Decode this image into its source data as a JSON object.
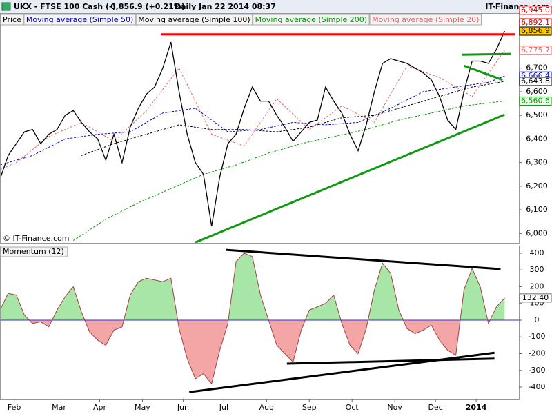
{
  "header": {
    "symbol": "UKX - FTSE 100 Cash (-)",
    "quote": "6,856.9 (+0.21%)",
    "period": "Daily  Jan 22 2014 08:37",
    "brand": "IT-Finance.com"
  },
  "chart_data": [
    {
      "type": "line",
      "watermark": "© IT-Finance.com",
      "xlim": [
        0,
        255
      ],
      "ylim": [
        5960,
        6930
      ],
      "yticks": [
        {
          "value": 6000,
          "label": "6,000"
        },
        {
          "value": 6100,
          "label": "6,100"
        },
        {
          "value": 6200,
          "label": "6,200"
        },
        {
          "value": 6300,
          "label": "6,300"
        },
        {
          "value": 6400,
          "label": "6,400"
        },
        {
          "value": 6500,
          "label": "6,500"
        },
        {
          "value": 6600,
          "label": "6,600"
        },
        {
          "value": 6700,
          "label": "6,700"
        }
      ],
      "xticks": [
        {
          "value": 7,
          "label": "Feb"
        },
        {
          "value": 29,
          "label": "Mar"
        },
        {
          "value": 49,
          "label": "Apr"
        },
        {
          "value": 70,
          "label": "May"
        },
        {
          "value": 90,
          "label": "Jun"
        },
        {
          "value": 110,
          "label": "Jul"
        },
        {
          "value": 131,
          "label": "Aug"
        },
        {
          "value": 152,
          "label": "Sep"
        },
        {
          "value": 173,
          "label": "Oct"
        },
        {
          "value": 194,
          "label": "Nov"
        },
        {
          "value": 214,
          "label": "Dec"
        },
        {
          "value": 234,
          "label": "2014"
        }
      ],
      "series": [
        {
          "name": "Price",
          "color": "#000000",
          "x": [
            0,
            4,
            8,
            12,
            16,
            20,
            24,
            28,
            32,
            36,
            40,
            44,
            48,
            52,
            56,
            60,
            64,
            68,
            72,
            76,
            80,
            84,
            88,
            92,
            96,
            100,
            104,
            108,
            112,
            116,
            120,
            124,
            128,
            132,
            136,
            140,
            144,
            148,
            152,
            156,
            160,
            164,
            168,
            172,
            176,
            180,
            184,
            188,
            192,
            196,
            200,
            204,
            208,
            212,
            216,
            220,
            224,
            228,
            232,
            236,
            240,
            244,
            248
          ],
          "values": [
            6230,
            6330,
            6380,
            6430,
            6440,
            6380,
            6420,
            6440,
            6500,
            6520,
            6470,
            6430,
            6400,
            6310,
            6420,
            6300,
            6450,
            6530,
            6590,
            6620,
            6700,
            6810,
            6600,
            6420,
            6300,
            6250,
            6030,
            6240,
            6380,
            6420,
            6530,
            6620,
            6560,
            6560,
            6500,
            6450,
            6390,
            6430,
            6470,
            6480,
            6620,
            6560,
            6510,
            6420,
            6350,
            6460,
            6600,
            6720,
            6740,
            6730,
            6720,
            6700,
            6680,
            6650,
            6580,
            6480,
            6440,
            6600,
            6730,
            6730,
            6720,
            6780,
            6856.9
          ]
        },
        {
          "name": "Moving average (Simple 50)",
          "color": "#0000cc",
          "last_label": "6,666.4",
          "x": [
            0,
            16,
            32,
            48,
            64,
            80,
            96,
            112,
            128,
            144,
            160,
            176,
            192,
            208,
            224,
            240,
            248
          ],
          "values": [
            6290,
            6330,
            6400,
            6420,
            6430,
            6510,
            6530,
            6430,
            6440,
            6470,
            6460,
            6470,
            6530,
            6600,
            6620,
            6640,
            6666.4
          ]
        },
        {
          "name": "Moving average (Simple 100)",
          "color": "#000000",
          "last_label": "6,643.8",
          "x": [
            40,
            56,
            72,
            88,
            104,
            120,
            136,
            152,
            168,
            184,
            200,
            216,
            232,
            248
          ],
          "values": [
            6330,
            6380,
            6420,
            6460,
            6440,
            6440,
            6430,
            6450,
            6490,
            6500,
            6540,
            6580,
            6620,
            6643.8
          ]
        },
        {
          "name": "Moving average (Simple 200)",
          "color": "#009900",
          "last_label": "6,560.6",
          "x": [
            36,
            52,
            68,
            84,
            100,
            116,
            132,
            148,
            164,
            180,
            196,
            212,
            228,
            248
          ],
          "values": [
            5970,
            6060,
            6130,
            6190,
            6250,
            6290,
            6340,
            6380,
            6410,
            6440,
            6480,
            6510,
            6540,
            6560.6
          ]
        },
        {
          "name": "Moving average (Simple 20)",
          "color": "#e06666",
          "last_label": "6,775.7",
          "x": [
            0,
            8,
            24,
            40,
            56,
            72,
            88,
            104,
            120,
            136,
            152,
            168,
            184,
            200,
            216,
            232,
            248
          ],
          "values": [
            6270,
            6300,
            6410,
            6470,
            6390,
            6520,
            6700,
            6420,
            6370,
            6570,
            6440,
            6540,
            6470,
            6710,
            6660,
            6580,
            6775.7
          ]
        }
      ],
      "price_levels": [
        {
          "value": 6945,
          "label": "6,945.0",
          "color": "#c00000"
        },
        {
          "value": 6892.1,
          "label": "6,892.1",
          "color": "#e00000"
        },
        {
          "value": 6856.9,
          "label": "6,856.9",
          "color": "#000000",
          "background": "#ffcc00"
        }
      ],
      "trendlines": [
        {
          "color": "#ff0000",
          "points": [
            [
              79,
              6843
            ],
            [
              253,
              6843
            ]
          ]
        },
        {
          "color": "#119911",
          "points": [
            [
              96,
              5962
            ],
            [
              248,
              6503
            ]
          ]
        },
        {
          "color": "#119911",
          "points": [
            [
              227,
              6757
            ],
            [
              251,
              6760
            ]
          ]
        },
        {
          "color": "#119911",
          "points": [
            [
              228,
              6710
            ],
            [
              247,
              6650
            ]
          ]
        }
      ]
    },
    {
      "type": "area",
      "title": "Momentum (12)",
      "xlim": [
        0,
        255
      ],
      "ylim": [
        -470,
        441
      ],
      "yticks": [
        400,
        300,
        200,
        100,
        0,
        -100,
        -200,
        -300,
        -400
      ],
      "series": [
        {
          "name": "Momentum (12)",
          "color": "#a04040",
          "positive_color": "#a8e6a8",
          "negative_color": "#f4a6a6",
          "last_label": "132.40",
          "x": [
            0,
            4,
            8,
            12,
            16,
            20,
            24,
            28,
            32,
            36,
            40,
            44,
            48,
            52,
            56,
            60,
            64,
            68,
            72,
            76,
            80,
            84,
            88,
            92,
            96,
            100,
            104,
            108,
            112,
            116,
            120,
            124,
            128,
            132,
            136,
            140,
            144,
            148,
            152,
            156,
            160,
            164,
            168,
            172,
            176,
            180,
            184,
            188,
            192,
            196,
            200,
            204,
            208,
            212,
            216,
            220,
            224,
            228,
            232,
            236,
            240,
            244,
            248
          ],
          "values": [
            60,
            160,
            150,
            30,
            -20,
            -10,
            -40,
            60,
            140,
            200,
            50,
            -70,
            -120,
            -150,
            -60,
            -40,
            150,
            230,
            250,
            240,
            230,
            250,
            -50,
            -230,
            -350,
            -320,
            -380,
            -180,
            -20,
            350,
            400,
            380,
            150,
            0,
            -150,
            -200,
            -250,
            -60,
            60,
            80,
            100,
            150,
            -20,
            -150,
            -200,
            -50,
            180,
            340,
            280,
            60,
            -50,
            -80,
            -60,
            -30,
            -120,
            -180,
            -210,
            180,
            310,
            200,
            -20,
            80,
            132.4
          ]
        }
      ],
      "trendlines": [
        {
          "color": "#000000",
          "points": [
            [
              111,
              420
            ],
            [
              246,
              305
            ]
          ]
        },
        {
          "color": "#000000",
          "points": [
            [
              93,
              -430
            ],
            [
              243,
              -195
            ]
          ]
        },
        {
          "color": "#000000",
          "points": [
            [
              141,
              -260
            ],
            [
              243,
              -230
            ]
          ]
        }
      ]
    }
  ]
}
